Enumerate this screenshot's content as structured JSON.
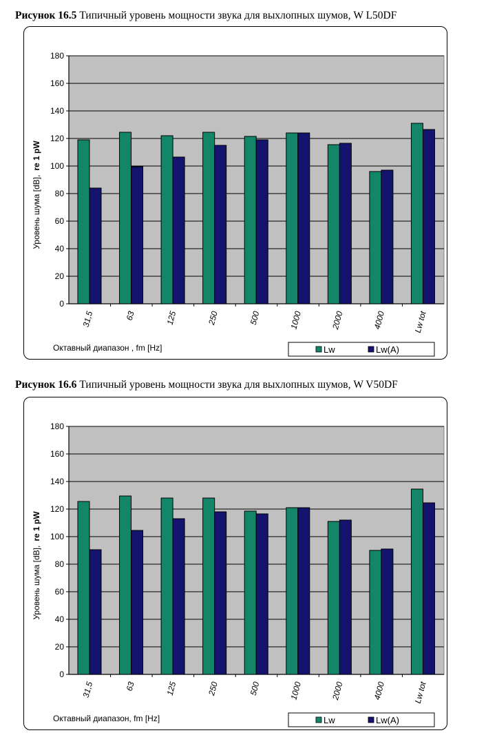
{
  "chart_data": [
    {
      "type": "bar",
      "caption_bold": "Рисунок 16.5",
      "caption_text": " Типичный уровень мощности звука для выхлопных шумов, W L50DF",
      "categories": [
        "31,5",
        "63",
        "125",
        "250",
        "500",
        "1000",
        "2000",
        "4000",
        "Lw tot"
      ],
      "series": [
        {
          "name": "Lw",
          "color": "#13866a",
          "values": [
            119,
            124.5,
            122,
            124.5,
            121.5,
            124,
            115.5,
            96,
            131
          ]
        },
        {
          "name": "Lw(A)",
          "color": "#14146e",
          "values": [
            84,
            99.5,
            106.5,
            115,
            119,
            124,
            116.5,
            97,
            126.5
          ]
        }
      ],
      "ylabel_part1": "Уровень шума  [dB],",
      "ylabel_part2": "re 1 pW",
      "xlabel": "Октавный диапазон , fm [Hz]",
      "ylim": [
        0,
        180
      ],
      "yticks": [
        "0",
        "20",
        "40",
        "60",
        "80",
        "100",
        "120",
        "140",
        "160",
        "180"
      ],
      "grid": true,
      "plot_bg": "#c0c0c0",
      "legend_position": "bottom-right"
    },
    {
      "type": "bar",
      "caption_bold": "Рисунок 16.6",
      "caption_text": " Типичный уровень мощности звука для выхлопных шумов, W V50DF",
      "categories": [
        "31,5",
        "63",
        "125",
        "250",
        "500",
        "1000",
        "2000",
        "4000",
        "Lw tot"
      ],
      "series": [
        {
          "name": "Lw",
          "color": "#13866a",
          "values": [
            125.5,
            129.5,
            128,
            128,
            118.5,
            121,
            111,
            90,
            134.5
          ]
        },
        {
          "name": "Lw(A)",
          "color": "#14146e",
          "values": [
            90.5,
            104.5,
            113,
            118,
            116.5,
            121,
            112,
            91,
            124.5
          ]
        }
      ],
      "ylabel_part1": "Уровень шума [dB],",
      "ylabel_part2": "re 1 pW",
      "xlabel": "Октавный диапазон, fm [Hz]",
      "ylim": [
        0,
        180
      ],
      "yticks": [
        "0",
        "20",
        "40",
        "60",
        "80",
        "100",
        "120",
        "140",
        "160",
        "180"
      ],
      "grid": true,
      "plot_bg": "#c0c0c0",
      "legend_position": "bottom-right"
    }
  ]
}
